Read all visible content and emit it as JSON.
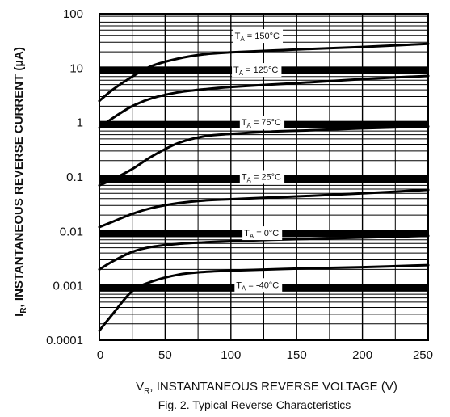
{
  "chart_data": {
    "type": "line",
    "title": "Fig. 2. Typical Reverse Characteristics",
    "xlabel": {
      "main": "V",
      "sub": "R",
      "rest": ", INSTANTANEOUS REVERSE VOLTAGE (V)"
    },
    "ylabel": {
      "main": "I",
      "sub": "R",
      "rest": ", INSTANTANEOUS REVERSE CURRENT (µA)"
    },
    "xlim": [
      0,
      250
    ],
    "ylim": [
      0.0001,
      100
    ],
    "yscale": "log",
    "grid": true,
    "x_ticks": [
      "0",
      "50",
      "100",
      "150",
      "200",
      "250"
    ],
    "y_ticks": [
      "100",
      "10",
      "1",
      "0.1",
      "0.01",
      "0.001",
      "0.0001"
    ],
    "series": [
      {
        "label": "150°C",
        "x": [
          0,
          10,
          25,
          40,
          60,
          80,
          100,
          130,
          160,
          200,
          250
        ],
        "y": [
          2.5,
          4,
          7,
          11,
          15,
          18,
          19.5,
          21,
          22.5,
          24.5,
          28
        ]
      },
      {
        "label": "125°C",
        "x": [
          0,
          10,
          25,
          40,
          60,
          80,
          100,
          130,
          160,
          200,
          250
        ],
        "y": [
          0.8,
          1.2,
          2,
          2.8,
          3.6,
          4.1,
          4.5,
          5,
          5.5,
          6.3,
          7.2
        ]
      },
      {
        "label": "75°C",
        "x": [
          0,
          10,
          25,
          40,
          60,
          80,
          100,
          130,
          160,
          200,
          250
        ],
        "y": [
          0.07,
          0.09,
          0.14,
          0.24,
          0.42,
          0.56,
          0.62,
          0.68,
          0.72,
          0.78,
          0.85
        ]
      },
      {
        "label": "25°C",
        "x": [
          0,
          10,
          25,
          40,
          60,
          80,
          100,
          130,
          160,
          200,
          250
        ],
        "y": [
          0.012,
          0.015,
          0.021,
          0.027,
          0.033,
          0.037,
          0.039,
          0.042,
          0.045,
          0.05,
          0.058
        ]
      },
      {
        "label": "0°C",
        "x": [
          0,
          10,
          25,
          40,
          60,
          80,
          100,
          130,
          160,
          200,
          250
        ],
        "y": [
          0.002,
          0.0028,
          0.0042,
          0.0052,
          0.0059,
          0.0063,
          0.0066,
          0.007,
          0.0073,
          0.0077,
          0.0083
        ]
      },
      {
        "label": "-40°C",
        "x": [
          0,
          10,
          25,
          40,
          60,
          80,
          100,
          130,
          160,
          200,
          250
        ],
        "y": [
          0.00015,
          0.0003,
          0.0008,
          0.0012,
          0.0016,
          0.0018,
          0.0019,
          0.002,
          0.0021,
          0.0022,
          0.0024
        ]
      }
    ],
    "annotations": [
      {
        "text_main": "T",
        "text_sub": "A",
        "text_rest": " = 150°C",
        "x": 103,
        "y": 37
      },
      {
        "text_main": "T",
        "text_sub": "A",
        "text_rest": " = 125°C",
        "x": 102,
        "y": 8.8
      },
      {
        "text_main": "T",
        "text_sub": "A",
        "text_rest": " = 75°C",
        "x": 108,
        "y": 0.95
      },
      {
        "text_main": "T",
        "text_sub": "A",
        "text_rest": " = 25°C",
        "x": 108,
        "y": 0.095
      },
      {
        "text_main": "T",
        "text_sub": "A",
        "text_rest": " = 0°C",
        "x": 110,
        "y": 0.0088
      },
      {
        "text_main": "T",
        "text_sub": "A",
        "text_rest": " = -40°C",
        "x": 104,
        "y": 0.00098
      }
    ]
  }
}
